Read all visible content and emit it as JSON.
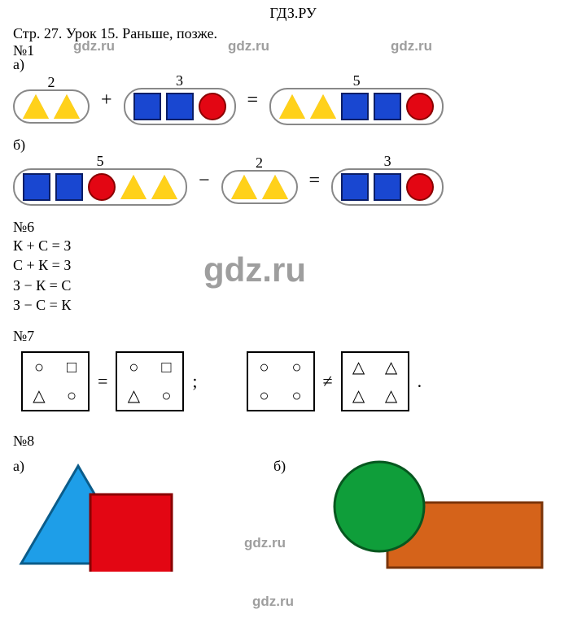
{
  "header": "ГДЗ.РУ",
  "title": "Стр. 27. Урок 15. Раньше, позже.",
  "watermarks": {
    "center_large": "gdz.ru",
    "small": "gdz.ru"
  },
  "ex1": {
    "label": "№1",
    "a_label": "а)",
    "b_label": "б)",
    "nums_a": {
      "first": "2",
      "second": "3",
      "result": "5"
    },
    "nums_b": {
      "first": "5",
      "second": "2",
      "result": "3"
    },
    "op_plus": "+",
    "op_minus": "−",
    "op_eq": "=",
    "colors": {
      "tri_fill": "#ffd11a",
      "tri_border": "#d4a200",
      "sq_fill": "#1947d1",
      "sq_border": "#0b1e66",
      "circ_fill": "#e30613",
      "circ_border": "#8a0000"
    },
    "a": {
      "first": [
        {
          "t": "tri"
        },
        {
          "t": "tri"
        }
      ],
      "second": [
        {
          "t": "sq"
        },
        {
          "t": "sq"
        },
        {
          "t": "circ"
        }
      ],
      "result": [
        {
          "t": "tri"
        },
        {
          "t": "tri"
        },
        {
          "t": "sq"
        },
        {
          "t": "sq"
        },
        {
          "t": "circ"
        }
      ]
    },
    "b": {
      "first": [
        {
          "t": "sq"
        },
        {
          "t": "sq"
        },
        {
          "t": "circ"
        },
        {
          "t": "tri"
        },
        {
          "t": "tri"
        }
      ],
      "second": [
        {
          "t": "tri"
        },
        {
          "t": "tri"
        }
      ],
      "result": [
        {
          "t": "sq"
        },
        {
          "t": "sq"
        },
        {
          "t": "circ"
        }
      ]
    }
  },
  "ex6": {
    "label": "№6",
    "lines": [
      "К + С = З",
      "С + К = З",
      "З − К = С",
      "З − С = К"
    ]
  },
  "ex7": {
    "label": "№7",
    "set1": [
      "○",
      "□",
      "△",
      "○"
    ],
    "set2": [
      "○",
      "□",
      "△",
      "○"
    ],
    "rel1": "=",
    "sep": ";",
    "set3": [
      "○",
      "○",
      "○",
      "○"
    ],
    "set4": [
      "△",
      "△",
      "△",
      "△"
    ],
    "rel2": "≠",
    "end": "."
  },
  "ex8": {
    "label": "№8",
    "a_label": "а)",
    "b_label": "б)",
    "a": {
      "triangle_color": "#1e9ee8",
      "triangle_border": "#0b5c8a",
      "square_color": "#e30613",
      "square_border": "#8a0000"
    },
    "b": {
      "circle_color": "#0f9e3a",
      "circle_border": "#06571f",
      "rect_color": "#d5631a",
      "rect_border": "#7a340a"
    }
  }
}
